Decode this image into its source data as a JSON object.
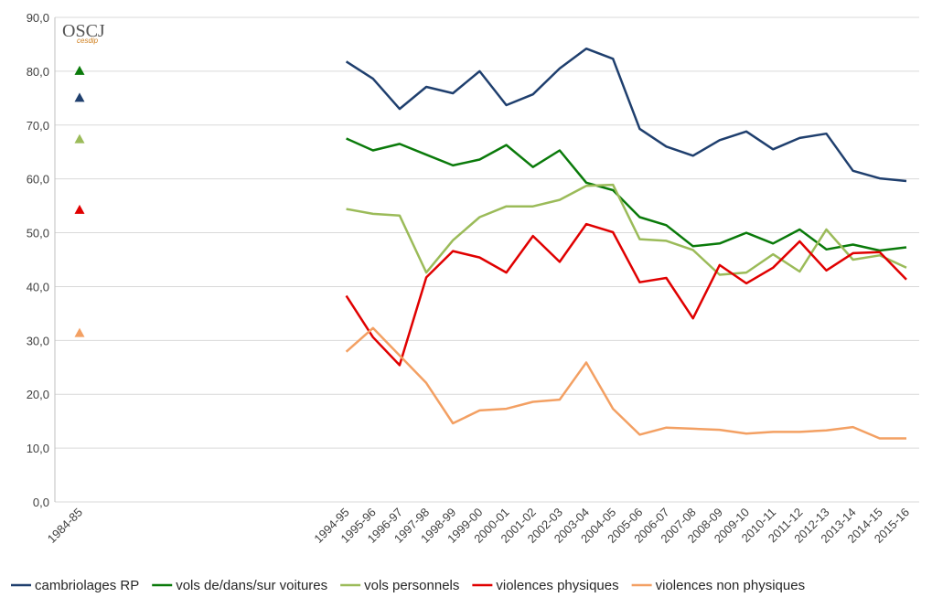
{
  "chart_data": {
    "type": "line",
    "logo": {
      "title": "OSCJ",
      "subtitle": "cesdip"
    },
    "categories": [
      "1984-85",
      null,
      null,
      null,
      null,
      null,
      null,
      null,
      null,
      null,
      "1994-95",
      "1995-96",
      "1996-97",
      "1997-98",
      "1998-99",
      "1999-00",
      "2000-01",
      "2001-02",
      "2002-03",
      "2003-04",
      "2004-05",
      "2005-06",
      "2006-07",
      "2007-08",
      "2008-09",
      "2009-10",
      "2010-11",
      "2011-12",
      "2012-13",
      "2013-14",
      "2014-15",
      "2015-16"
    ],
    "series": [
      {
        "name": "cambriolages RP",
        "color": "#1f3f6e",
        "values": [
          75.0,
          null,
          null,
          null,
          null,
          null,
          null,
          null,
          null,
          null,
          81.8,
          78.6,
          73.0,
          77.1,
          75.9,
          80.0,
          73.7,
          75.7,
          80.5,
          84.2,
          82.3,
          69.3,
          66.0,
          64.3,
          67.2,
          68.8,
          65.5,
          67.6,
          68.4,
          61.5,
          60.1,
          59.6
        ]
      },
      {
        "name": "vols de/dans/sur voitures",
        "color": "#0a7a0a",
        "values": [
          80.0,
          null,
          null,
          null,
          null,
          null,
          null,
          null,
          null,
          null,
          67.5,
          65.3,
          66.5,
          64.5,
          62.5,
          63.6,
          66.3,
          62.2,
          65.3,
          59.3,
          57.9,
          52.9,
          51.4,
          47.5,
          48.0,
          50.0,
          48.0,
          50.6,
          46.9,
          47.8,
          46.7,
          47.3
        ]
      },
      {
        "name": "vols personnels",
        "color": "#9bbb59",
        "values": [
          67.3,
          null,
          null,
          null,
          null,
          null,
          null,
          null,
          null,
          null,
          54.4,
          53.5,
          53.2,
          42.6,
          48.6,
          52.9,
          54.9,
          54.9,
          56.1,
          58.7,
          58.9,
          48.8,
          48.5,
          46.8,
          42.2,
          42.6,
          46.0,
          42.8,
          50.6,
          45.0,
          45.8,
          43.5
        ]
      },
      {
        "name": "violences physiques",
        "color": "#e00000",
        "values": [
          54.2,
          null,
          null,
          null,
          null,
          null,
          null,
          null,
          null,
          null,
          38.3,
          30.6,
          25.4,
          41.7,
          46.6,
          45.4,
          42.6,
          49.4,
          44.6,
          51.6,
          50.1,
          40.8,
          41.6,
          34.1,
          44.0,
          40.6,
          43.5,
          48.4,
          43.0,
          46.2,
          46.4,
          41.3
        ]
      },
      {
        "name": "violences non physiques",
        "color": "#f3a063",
        "values": [
          31.3,
          null,
          null,
          null,
          null,
          null,
          null,
          null,
          null,
          null,
          27.9,
          32.3,
          27.2,
          22.1,
          14.6,
          17.0,
          17.3,
          18.6,
          19.0,
          25.9,
          17.3,
          12.5,
          13.8,
          13.6,
          13.4,
          12.7,
          13.0,
          13.0,
          13.3,
          13.9,
          11.8,
          11.8
        ]
      }
    ],
    "ylim": [
      0,
      90
    ],
    "yticks": [
      {
        "value": 0,
        "label": "0,0"
      },
      {
        "value": 10,
        "label": "10,0"
      },
      {
        "value": 20,
        "label": "20,0"
      },
      {
        "value": 30,
        "label": "30,0"
      },
      {
        "value": 40,
        "label": "40,0"
      },
      {
        "value": 50,
        "label": "50,0"
      },
      {
        "value": 60,
        "label": "60,0"
      },
      {
        "value": 70,
        "label": "70,0"
      },
      {
        "value": 80,
        "label": "80,0"
      },
      {
        "value": 90,
        "label": "90,0"
      }
    ],
    "grid": true,
    "legend": "bottom"
  }
}
